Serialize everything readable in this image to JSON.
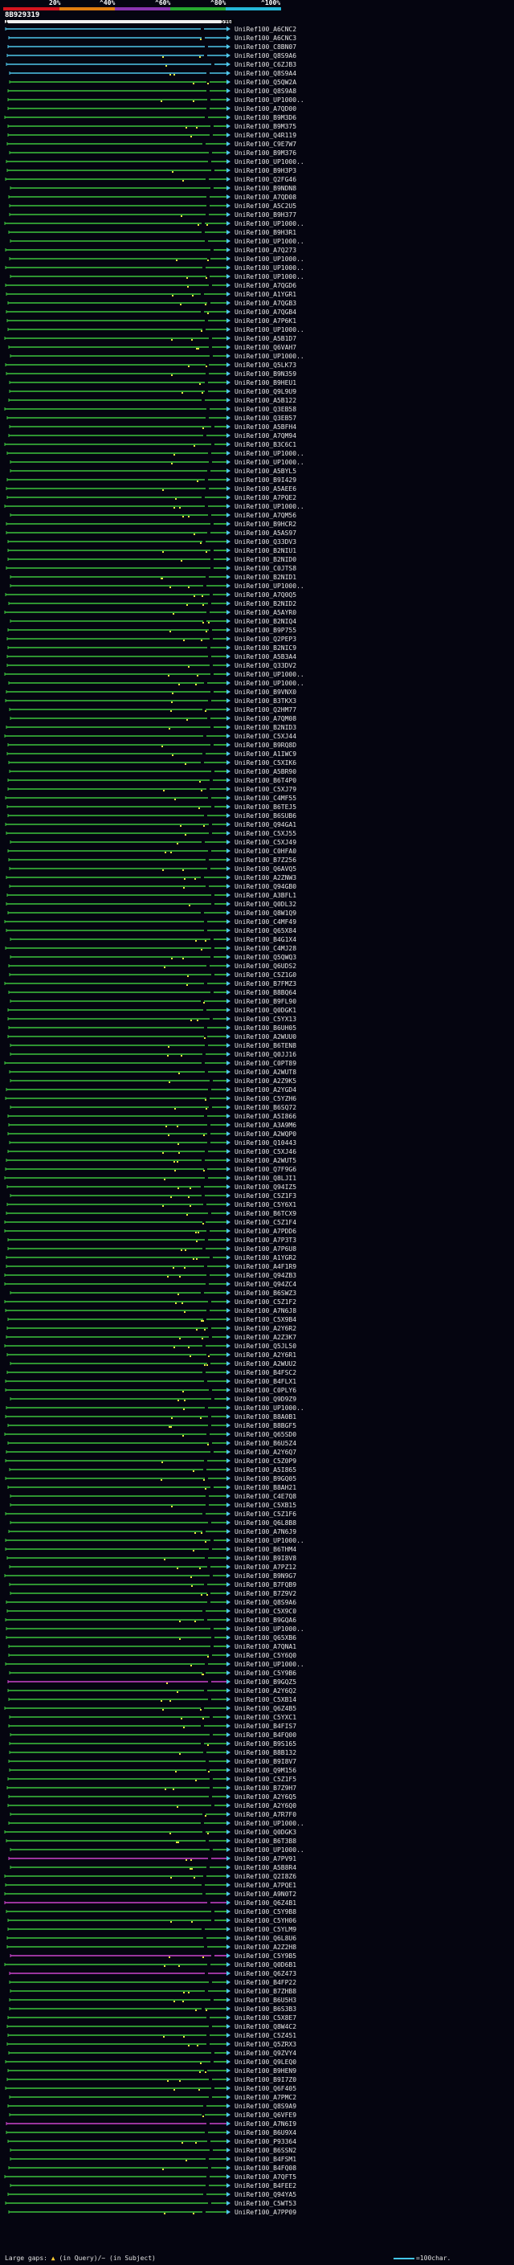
{
  "legend": {
    "percent_labels": [
      "20%",
      "^40%",
      "^60%",
      "^80%",
      "^100%"
    ],
    "colors": [
      "#d4141e",
      "#e07d10",
      "#8a35b0",
      "#27a830",
      "#25b8d8"
    ]
  },
  "query": {
    "id": "8B929319",
    "start": "1",
    "end": "5961"
  },
  "colors": {
    "green": "#3cc43c",
    "cyan": "#4ec6ea",
    "magenta": "#cc44cc",
    "yellow": "#e6e640",
    "white": "#ffffff"
  },
  "hits": [
    {
      "label": "UniRef100_A6CNC2",
      "color": "cyan"
    },
    {
      "label": "UniRef100_A6CNC3",
      "color": "cyan"
    },
    {
      "label": "UniRef100_C8BN07",
      "color": "cyan"
    },
    {
      "label": "UniRef100_Q8S9A6",
      "color": "cyan"
    },
    {
      "label": "UniRef100_C6ZJB3",
      "color": "cyan"
    },
    {
      "label": "UniRef100_Q8S9A4",
      "color": "cyan"
    },
    {
      "label": "UniRef100_Q5QW2A",
      "color": "green"
    },
    {
      "label": "UniRef100_Q8S9A8",
      "color": "green"
    },
    {
      "label": "UniRef100_UP1000..",
      "color": "green"
    },
    {
      "label": "UniRef100_A7QD00",
      "color": "green"
    },
    {
      "label": "UniRef100_B9M3D6",
      "color": "green"
    },
    {
      "label": "UniRef100_B9M375",
      "color": "green"
    },
    {
      "label": "UniRef100_Q4R119",
      "color": "green"
    },
    {
      "label": "UniRef100_C9E7W7",
      "color": "green"
    },
    {
      "label": "UniRef100_B9M376",
      "color": "green"
    },
    {
      "label": "UniRef100_UP1000..",
      "color": "green"
    },
    {
      "label": "UniRef100_B9H3P3",
      "color": "green"
    },
    {
      "label": "UniRef100_Q2FG46",
      "color": "green"
    },
    {
      "label": "UniRef100_B9NDN8",
      "color": "green"
    },
    {
      "label": "UniRef100_A7QD08",
      "color": "green"
    },
    {
      "label": "UniRef100_A5C2U5",
      "color": "green"
    },
    {
      "label": "UniRef100_B9H377",
      "color": "green"
    },
    {
      "label": "UniRef100_UP1000..",
      "color": "green"
    },
    {
      "label": "UniRef100_B9H3R1",
      "color": "green"
    },
    {
      "label": "UniRef100_UP1000..",
      "color": "green"
    },
    {
      "label": "UniRef100_A7Q273",
      "color": "green"
    },
    {
      "label": "UniRef100_UP1000..",
      "color": "green"
    },
    {
      "label": "UniRef100_UP1000..",
      "color": "green"
    },
    {
      "label": "UniRef100_UP1000..",
      "color": "green"
    },
    {
      "label": "UniRef100_A7QGD6",
      "color": "green"
    },
    {
      "label": "UniRef100_A1YGR1",
      "color": "green"
    },
    {
      "label": "UniRef100_A7QGB3",
      "color": "green"
    },
    {
      "label": "UniRef100_A7QGB4",
      "color": "green"
    },
    {
      "label": "UniRef100_A7P6K1",
      "color": "green"
    },
    {
      "label": "UniRef100_UP1000..",
      "color": "green"
    },
    {
      "label": "UniRef100_A5B1D7",
      "color": "green"
    },
    {
      "label": "UniRef100_Q6VAH7",
      "color": "green"
    },
    {
      "label": "UniRef100_UP1000..",
      "color": "green"
    },
    {
      "label": "UniRef100_Q5LK73",
      "color": "green"
    },
    {
      "label": "UniRef100_B9N359",
      "color": "green"
    },
    {
      "label": "UniRef100_B9HEU1",
      "color": "green"
    },
    {
      "label": "UniRef100_Q9L9U9",
      "color": "green"
    },
    {
      "label": "UniRef100_A5B122",
      "color": "green"
    },
    {
      "label": "UniRef100_Q3EB58",
      "color": "green"
    },
    {
      "label": "UniRef100_Q3EB57",
      "color": "green"
    },
    {
      "label": "UniRef100_A5BFH4",
      "color": "green"
    },
    {
      "label": "UniRef100_A7QM94",
      "color": "green"
    },
    {
      "label": "UniRef100_B3C6C1",
      "color": "green"
    },
    {
      "label": "UniRef100_UP1000..",
      "color": "green"
    },
    {
      "label": "UniRef100_UP1000..",
      "color": "green"
    },
    {
      "label": "UniRef100_A5BYL5",
      "color": "green"
    },
    {
      "label": "UniRef100_B9I429",
      "color": "green"
    },
    {
      "label": "UniRef100_A5AEE6",
      "color": "green"
    },
    {
      "label": "UniRef100_A7PQE2",
      "color": "green"
    },
    {
      "label": "UniRef100_UP1000..",
      "color": "green"
    },
    {
      "label": "UniRef100_A7QM56",
      "color": "green"
    },
    {
      "label": "UniRef100_B9HCR2",
      "color": "green"
    },
    {
      "label": "UniRef100_A5AS97",
      "color": "green"
    },
    {
      "label": "UniRef100_Q33DV3",
      "color": "green"
    },
    {
      "label": "UniRef100_B2NIU1",
      "color": "green"
    },
    {
      "label": "UniRef100_B2NID0",
      "color": "green"
    },
    {
      "label": "UniRef100_C0JTS8",
      "color": "green"
    },
    {
      "label": "UniRef100_B2NID1",
      "color": "green"
    },
    {
      "label": "UniRef100_UP1000..",
      "color": "green"
    },
    {
      "label": "UniRef100_A7Q0Q5",
      "color": "green"
    },
    {
      "label": "UniRef100_B2NID2",
      "color": "green"
    },
    {
      "label": "UniRef100_A5AYR0",
      "color": "green"
    },
    {
      "label": "UniRef100_B2NIQ4",
      "color": "green"
    },
    {
      "label": "UniRef100_B9P755",
      "color": "green"
    },
    {
      "label": "UniRef100_Q2PEP3",
      "color": "green"
    },
    {
      "label": "UniRef100_B2NIC9",
      "color": "green"
    },
    {
      "label": "UniRef100_A5B3A4",
      "color": "green"
    },
    {
      "label": "UniRef100_Q33DV2",
      "color": "green"
    },
    {
      "label": "UniRef100_UP1000..",
      "color": "green"
    },
    {
      "label": "UniRef100_UP1000..",
      "color": "green"
    },
    {
      "label": "UniRef100_B9VNX0",
      "color": "green"
    },
    {
      "label": "UniRef100_B3TKX3",
      "color": "green"
    },
    {
      "label": "UniRef100_Q2HM77",
      "color": "green"
    },
    {
      "label": "UniRef100_A7QM08",
      "color": "green"
    },
    {
      "label": "UniRef100_B2NID3",
      "color": "green"
    },
    {
      "label": "UniRef100_C5XJ44",
      "color": "green"
    },
    {
      "label": "UniRef100_B9RQ8D",
      "color": "green"
    },
    {
      "label": "UniRef100_A1IWC9",
      "color": "green"
    },
    {
      "label": "UniRef100_C5XIK6",
      "color": "green"
    },
    {
      "label": "UniRef100_A5BR90",
      "color": "green"
    },
    {
      "label": "UniRef100_B6T4P0",
      "color": "green"
    },
    {
      "label": "UniRef100_C5XJ79",
      "color": "green"
    },
    {
      "label": "UniRef100_C4MF55",
      "color": "green"
    },
    {
      "label": "UniRef100_B6TEJ5",
      "color": "green"
    },
    {
      "label": "UniRef100_B6SUB6",
      "color": "green"
    },
    {
      "label": "UniRef100_Q94GA1",
      "color": "green"
    },
    {
      "label": "UniRef100_C5XJ55",
      "color": "green"
    },
    {
      "label": "UniRef100_C5XJ49",
      "color": "green"
    },
    {
      "label": "UniRef100_C0HFA0",
      "color": "green"
    },
    {
      "label": "UniRef100_B7Z256",
      "color": "green"
    },
    {
      "label": "UniRef100_Q6AVQ5",
      "color": "green"
    },
    {
      "label": "UniRef100_A2ZNW3",
      "color": "green"
    },
    {
      "label": "UniRef100_Q94GB0",
      "color": "green"
    },
    {
      "label": "UniRef100_A3BFL1",
      "color": "green"
    },
    {
      "label": "UniRef100_Q0DL32",
      "color": "green"
    },
    {
      "label": "UniRef100_Q8W1Q9",
      "color": "green"
    },
    {
      "label": "UniRef100_C4MF49",
      "color": "green"
    },
    {
      "label": "UniRef100_Q65X84",
      "color": "green"
    },
    {
      "label": "UniRef100_B4G1X4",
      "color": "green"
    },
    {
      "label": "UniRef100_C4MJ28",
      "color": "green"
    },
    {
      "label": "UniRef100_Q5QWQ3",
      "color": "green"
    },
    {
      "label": "UniRef100_Q6UDS2",
      "color": "green"
    },
    {
      "label": "UniRef100_C5Z1G0",
      "color": "green"
    },
    {
      "label": "UniRef100_B7FMZ3",
      "color": "green"
    },
    {
      "label": "UniRef100_B8BQ64",
      "color": "green"
    },
    {
      "label": "UniRef100_B9FL90",
      "color": "green"
    },
    {
      "label": "UniRef100_Q0DGK1",
      "color": "green"
    },
    {
      "label": "UniRef100_C5YX13",
      "color": "green"
    },
    {
      "label": "UniRef100_B6UH05",
      "color": "green"
    },
    {
      "label": "UniRef100_A2WUU0",
      "color": "green"
    },
    {
      "label": "UniRef100_B6TEN8",
      "color": "green"
    },
    {
      "label": "UniRef100_Q0JJ16",
      "color": "green"
    },
    {
      "label": "UniRef100_C0PT89",
      "color": "green"
    },
    {
      "label": "UniRef100_A2WUT8",
      "color": "green"
    },
    {
      "label": "UniRef100_A2Z9K5",
      "color": "green"
    },
    {
      "label": "UniRef100_A2YGD4",
      "color": "green"
    },
    {
      "label": "UniRef100_C5YZH6",
      "color": "green"
    },
    {
      "label": "UniRef100_B6SQ72",
      "color": "green"
    },
    {
      "label": "UniRef100_A5I866",
      "color": "green"
    },
    {
      "label": "UniRef100_A3A9M6",
      "color": "green"
    },
    {
      "label": "UniRef100_A2WQP0",
      "color": "green"
    },
    {
      "label": "UniRef100_Q10443",
      "color": "green"
    },
    {
      "label": "UniRef100_C5XJ46",
      "color": "green"
    },
    {
      "label": "UniRef100_A2WUT5",
      "color": "green"
    },
    {
      "label": "UniRef100_Q7F9G6",
      "color": "green"
    },
    {
      "label": "UniRef100_Q8LJI1",
      "color": "green"
    },
    {
      "label": "UniRef100_Q94IZ5",
      "color": "green"
    },
    {
      "label": "UniRef100_C5Z1F3",
      "color": "green"
    },
    {
      "label": "UniRef100_C5Y6X1",
      "color": "green"
    },
    {
      "label": "UniRef100_B6TCX9",
      "color": "green"
    },
    {
      "label": "UniRef100_C5Z1F4",
      "color": "green"
    },
    {
      "label": "UniRef100_A7PDD6",
      "color": "green"
    },
    {
      "label": "UniRef100_A7P3T3",
      "color": "green"
    },
    {
      "label": "UniRef100_A7P6U8",
      "color": "green"
    },
    {
      "label": "UniRef100_A1YGR2",
      "color": "green"
    },
    {
      "label": "UniRef100_A4F1R9",
      "color": "green"
    },
    {
      "label": "UniRef100_Q94ZB3",
      "color": "green"
    },
    {
      "label": "UniRef100_Q94ZC4",
      "color": "green"
    },
    {
      "label": "UniRef100_B6SWZ3",
      "color": "green"
    },
    {
      "label": "UniRef100_C5Z1F2",
      "color": "green"
    },
    {
      "label": "UniRef100_A7N6J8",
      "color": "green"
    },
    {
      "label": "UniRef100_C5X9B4",
      "color": "green"
    },
    {
      "label": "UniRef100_A2Y6R2",
      "color": "green"
    },
    {
      "label": "UniRef100_A2Z3K7",
      "color": "green"
    },
    {
      "label": "UniRef100_Q5JL50",
      "color": "green"
    },
    {
      "label": "UniRef100_A2Y6R1",
      "color": "green"
    },
    {
      "label": "UniRef100_A2WUU2",
      "color": "green"
    },
    {
      "label": "UniRef100_B4FSC2",
      "color": "green"
    },
    {
      "label": "UniRef100_B4FLX1",
      "color": "green"
    },
    {
      "label": "UniRef100_C0PLY6",
      "color": "green"
    },
    {
      "label": "UniRef100_Q9D9Z9",
      "color": "green"
    },
    {
      "label": "UniRef100_UP1000..",
      "color": "green"
    },
    {
      "label": "UniRef100_B8A0B1",
      "color": "green"
    },
    {
      "label": "UniRef100_B8BGF5",
      "color": "green"
    },
    {
      "label": "UniRef100_Q65SD0",
      "color": "green"
    },
    {
      "label": "UniRef100_B6U5Z4",
      "color": "green"
    },
    {
      "label": "UniRef100_A2Y6Q7",
      "color": "green"
    },
    {
      "label": "UniRef100_C5Z0P9",
      "color": "green"
    },
    {
      "label": "UniRef100_A5I865",
      "color": "green"
    },
    {
      "label": "UniRef100_B9GQ05",
      "color": "green"
    },
    {
      "label": "UniRef100_B8AH21",
      "color": "green"
    },
    {
      "label": "UniRef100_C4E7Q8",
      "color": "green"
    },
    {
      "label": "UniRef100_C5XB15",
      "color": "green"
    },
    {
      "label": "UniRef100_C5Z1F6",
      "color": "green"
    },
    {
      "label": "UniRef100_Q6L8B8",
      "color": "green"
    },
    {
      "label": "UniRef100_A7N6J9",
      "color": "green"
    },
    {
      "label": "UniRef100_UP1000..",
      "color": "green"
    },
    {
      "label": "UniRef100_B6THM4",
      "color": "green"
    },
    {
      "label": "UniRef100_B9I8V8",
      "color": "green"
    },
    {
      "label": "UniRef100_A7PZ12",
      "color": "green"
    },
    {
      "label": "UniRef100_B9N9G7",
      "color": "green"
    },
    {
      "label": "UniRef100_B7FQB9",
      "color": "green"
    },
    {
      "label": "UniRef100_B7Z9V2",
      "color": "green"
    },
    {
      "label": "UniRef100_Q8S9A6",
      "color": "green"
    },
    {
      "label": "UniRef100_C5X9C0",
      "color": "green"
    },
    {
      "label": "UniRef100_B9GQA6",
      "color": "green"
    },
    {
      "label": "UniRef100_UP1000..",
      "color": "green"
    },
    {
      "label": "UniRef100_Q65XB6",
      "color": "green"
    },
    {
      "label": "UniRef100_A7QNA1",
      "color": "green"
    },
    {
      "label": "UniRef100_C5Y6Q0",
      "color": "green"
    },
    {
      "label": "UniRef100_UP1000..",
      "color": "green"
    },
    {
      "label": "UniRef100_C5Y9B6",
      "color": "green"
    },
    {
      "label": "UniRef100_B9GQZ5",
      "color": "magenta"
    },
    {
      "label": "UniRef100_A2Y6Q2",
      "color": "green"
    },
    {
      "label": "UniRef100_C5XB14",
      "color": "green"
    },
    {
      "label": "UniRef100_Q6Z4B5",
      "color": "green"
    },
    {
      "label": "UniRef100_C5YXC1",
      "color": "green"
    },
    {
      "label": "UniRef100_B4FIS7",
      "color": "green"
    },
    {
      "label": "UniRef100_B4FQ00",
      "color": "green"
    },
    {
      "label": "UniRef100_B9S165",
      "color": "green"
    },
    {
      "label": "UniRef100_B8B132",
      "color": "green"
    },
    {
      "label": "UniRef100_B9I8V7",
      "color": "green"
    },
    {
      "label": "UniRef100_Q9M156",
      "color": "green"
    },
    {
      "label": "UniRef100_C5Z1F5",
      "color": "green"
    },
    {
      "label": "UniRef100_B7Z9H7",
      "color": "green"
    },
    {
      "label": "UniRef100_A2Y6Q5",
      "color": "green"
    },
    {
      "label": "UniRef100_A2Y6Q0",
      "color": "green"
    },
    {
      "label": "UniRef100_A7R7F0",
      "color": "green"
    },
    {
      "label": "UniRef100_UP1000..",
      "color": "green"
    },
    {
      "label": "UniRef100_Q0DGK3",
      "color": "green"
    },
    {
      "label": "UniRef100_B6T3B8",
      "color": "green"
    },
    {
      "label": "UniRef100_UP1000..",
      "color": "green"
    },
    {
      "label": "UniRef100_A7PV91",
      "color": "magenta"
    },
    {
      "label": "UniRef100_A5B8R4",
      "color": "green"
    },
    {
      "label": "UniRef100_Q2I8Z6",
      "color": "green"
    },
    {
      "label": "UniRef100_A7PQE1",
      "color": "green"
    },
    {
      "label": "UniRef100_A9N0T2",
      "color": "green"
    },
    {
      "label": "UniRef100_Q6Z4B1",
      "color": "magenta"
    },
    {
      "label": "UniRef100_C5Y9B8",
      "color": "green"
    },
    {
      "label": "UniRef100_C5YH06",
      "color": "green"
    },
    {
      "label": "UniRef100_C5YLM9",
      "color": "green"
    },
    {
      "label": "UniRef100_Q6L8U6",
      "color": "green"
    },
    {
      "label": "UniRef100_A2Z2H8",
      "color": "green"
    },
    {
      "label": "UniRef100_C5Y9B5",
      "color": "magenta"
    },
    {
      "label": "UniRef100_Q0D6B1",
      "color": "green"
    },
    {
      "label": "UniRef100_Q6Z473",
      "color": "magenta"
    },
    {
      "label": "UniRef100_B4FP22",
      "color": "green"
    },
    {
      "label": "UniRef100_B7ZHB8",
      "color": "green"
    },
    {
      "label": "UniRef100_B6U5H3",
      "color": "green"
    },
    {
      "label": "UniRef100_B6S3B3",
      "color": "green"
    },
    {
      "label": "UniRef100_C5X8E7",
      "color": "green"
    },
    {
      "label": "UniRef100_Q8W4C2",
      "color": "green"
    },
    {
      "label": "UniRef100_C5Z451",
      "color": "green"
    },
    {
      "label": "UniRef100_Q5ZRX3",
      "color": "green"
    },
    {
      "label": "UniRef100_Q9ZVY4",
      "color": "green"
    },
    {
      "label": "UniRef100_Q9LEQ0",
      "color": "green"
    },
    {
      "label": "UniRef100_B9HEN9",
      "color": "green"
    },
    {
      "label": "UniRef100_B9I7Z0",
      "color": "green"
    },
    {
      "label": "UniRef100_Q6F405",
      "color": "green"
    },
    {
      "label": "UniRef100_A7PMC2",
      "color": "green"
    },
    {
      "label": "UniRef100_Q8S9A9",
      "color": "green"
    },
    {
      "label": "UniRef100_Q6VFE9",
      "color": "green"
    },
    {
      "label": "UniRef100_A7N6I9",
      "color": "magenta"
    },
    {
      "label": "UniRef100_B6U9X4",
      "color": "green"
    },
    {
      "label": "UniRef100_P93364",
      "color": "green"
    },
    {
      "label": "UniRef100_B6SSN2",
      "color": "green"
    },
    {
      "label": "UniRef100_B4FSM1",
      "color": "green"
    },
    {
      "label": "UniRef100_B4FQ08",
      "color": "green"
    },
    {
      "label": "UniRef100_A7QFT5",
      "color": "green"
    },
    {
      "label": "UniRef100_B4FEE2",
      "color": "green"
    },
    {
      "label": "UniRef100_Q94YA5",
      "color": "green"
    },
    {
      "label": "UniRef100_C5WT53",
      "color": "green"
    },
    {
      "label": "UniRef100_A7PP09",
      "color": "green"
    }
  ],
  "footer": {
    "left_prefix": "Large gaps: ",
    "left_mark": "▲",
    "left_text": " (in Query)/~ (in Subject)",
    "right_text": "=100char."
  }
}
